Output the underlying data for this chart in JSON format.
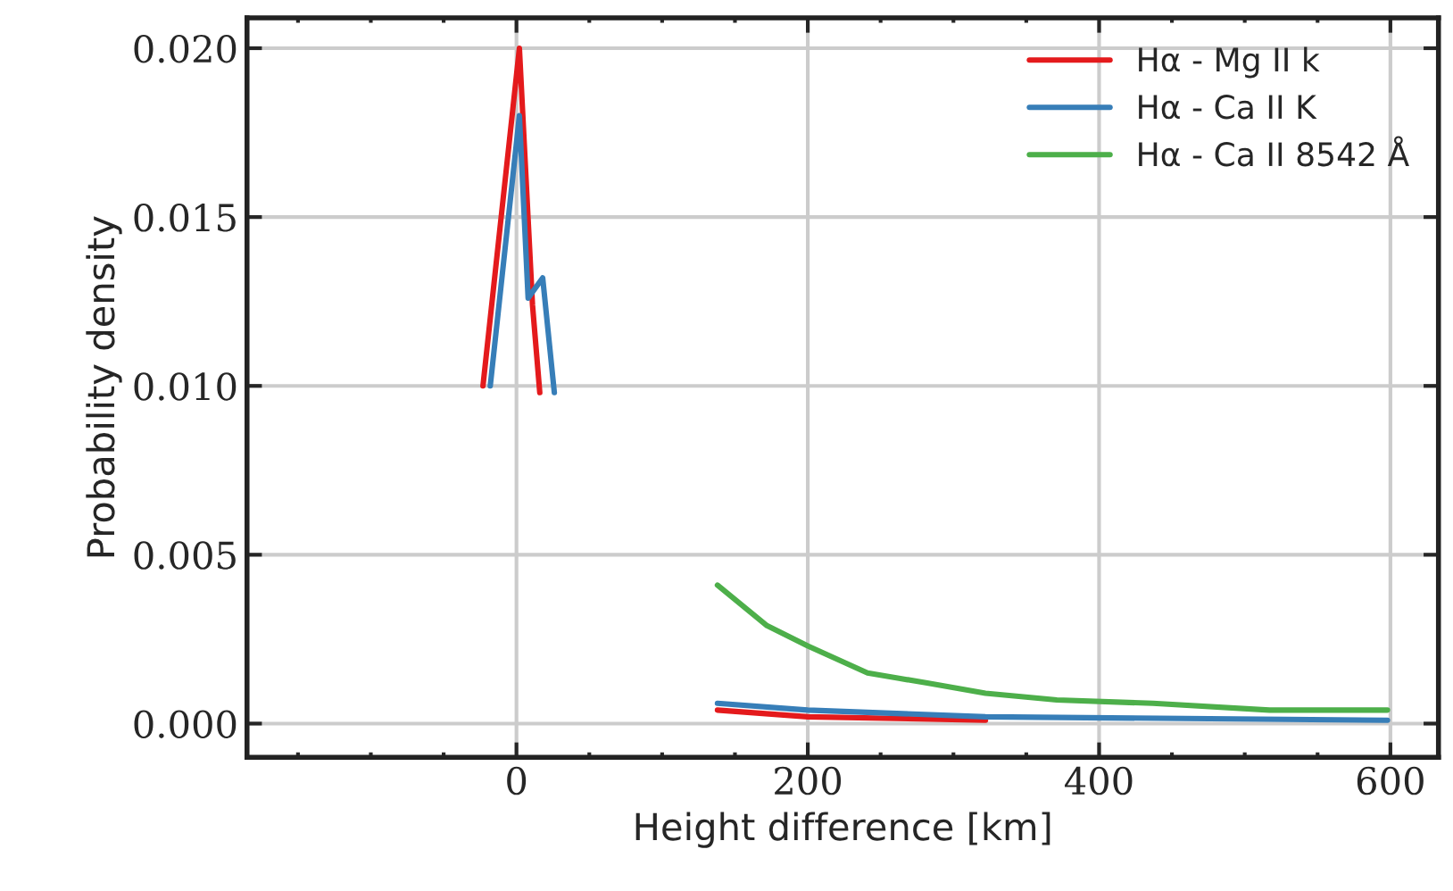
{
  "chart_data": {
    "type": "line",
    "xlabel": "Height difference [km]",
    "ylabel": "Probability density",
    "series": [
      {
        "name": "Hα - Mg II k",
        "color": "#e41a1c",
        "x": [
          -23,
          2,
          11,
          16,
          80,
          138,
          200,
          322
        ],
        "values": [
          0.01,
          0.02,
          0.0124,
          0.0098,
          null,
          0.0004,
          0.0002,
          0.0001
        ]
      },
      {
        "name": "Hα - Ca II K",
        "color": "#377eb8",
        "x": [
          -18,
          2,
          8,
          18,
          26,
          80,
          138,
          200,
          322,
          598
        ],
        "values": [
          0.01,
          0.018,
          0.0126,
          0.0132,
          0.0098,
          null,
          0.0006,
          0.0004,
          0.0002,
          0.0001
        ]
      },
      {
        "name": "Hα - Ca II 8542 Å",
        "color": "#4daf4a",
        "x": [
          138,
          172,
          200,
          241,
          282,
          322,
          371,
          437,
          517,
          598
        ],
        "values": [
          0.0041,
          0.0029,
          0.0023,
          0.0015,
          0.0012,
          0.0009,
          0.0007,
          0.0006,
          0.0004,
          0.0004
        ]
      }
    ],
    "xlim": [
      -185,
      633
    ],
    "ylim": [
      -0.001,
      0.0209
    ],
    "xticks": [
      0,
      200,
      400,
      600
    ],
    "yticks": [
      {
        "value": 0,
        "label": "0.000"
      },
      {
        "value": 0.005,
        "label": "0.005"
      },
      {
        "value": 0.01,
        "label": "0.010"
      },
      {
        "value": 0.015,
        "label": "0.015"
      },
      {
        "value": 0.02,
        "label": "0.020"
      }
    ],
    "grid": true,
    "legend": "top right",
    "marker": "none",
    "line_style": "solid"
  }
}
